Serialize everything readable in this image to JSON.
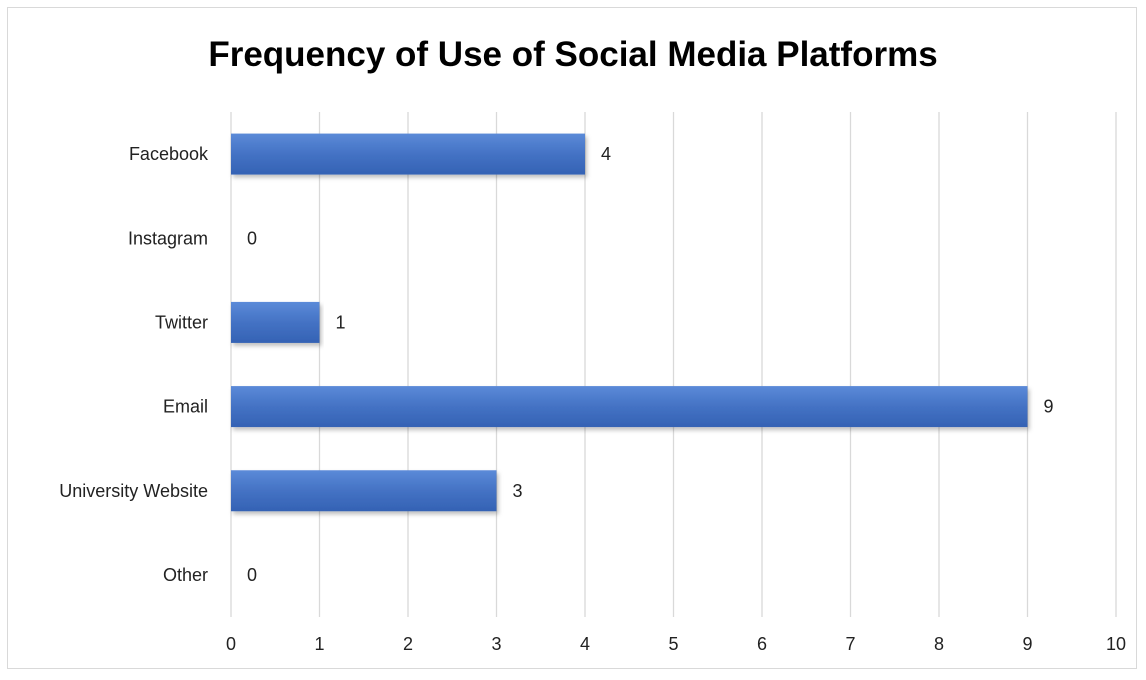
{
  "chart_data": {
    "type": "bar",
    "orientation": "horizontal",
    "title": "Frequency of Use of Social Media Platforms",
    "categories": [
      "Facebook",
      "Instagram",
      "Twitter",
      "Email",
      "University Website",
      "Other"
    ],
    "values": [
      4,
      0,
      1,
      9,
      3,
      0
    ],
    "xlim": [
      0,
      10
    ],
    "xticks": [
      0,
      1,
      2,
      3,
      4,
      5,
      6,
      7,
      8,
      9,
      10
    ],
    "xlabel": "",
    "ylabel": "",
    "grid": true,
    "legend": "none",
    "data_labels": true,
    "colors": {
      "bar": "#4472c4",
      "bar_top": "#5b8ad8",
      "bar_bottom": "#3462b4",
      "grid": "#d9d9d9",
      "frame": "#d9d9d9"
    }
  }
}
